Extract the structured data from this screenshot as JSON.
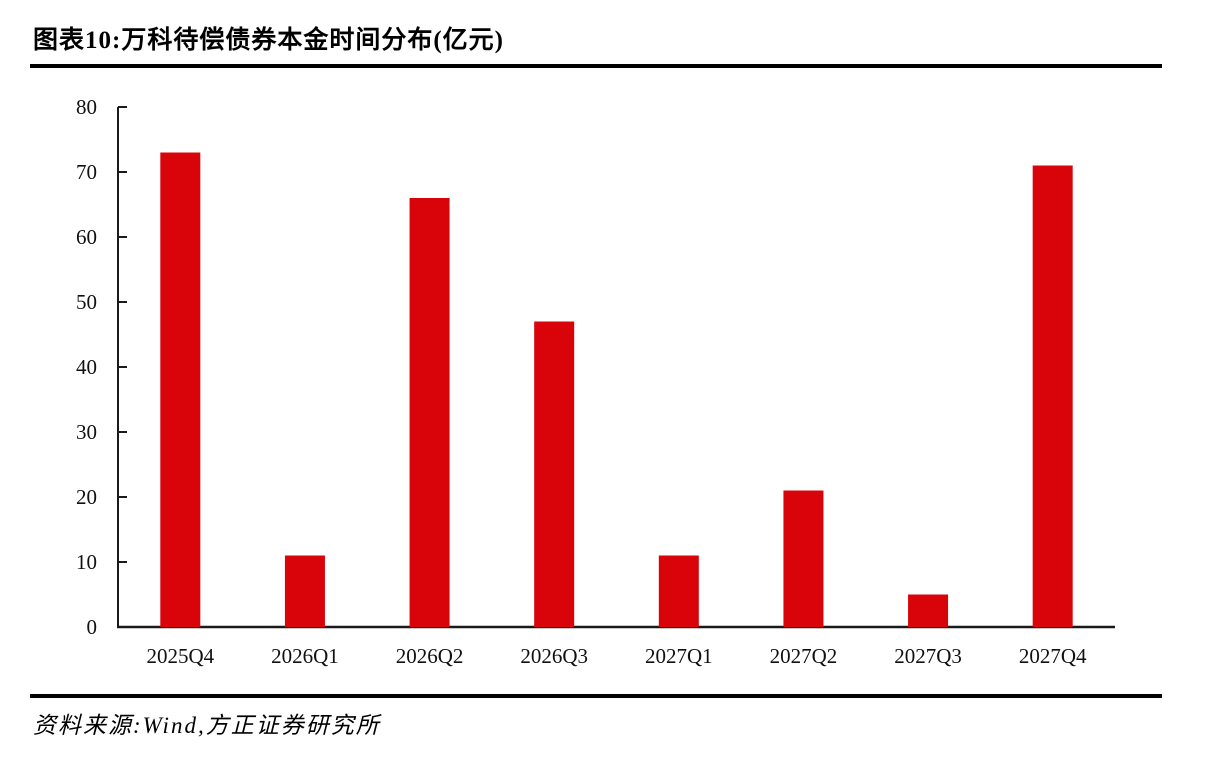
{
  "header": {
    "title": "图表10:万科待偿债券本金时间分布(亿元)"
  },
  "footer": {
    "source": "资料来源:Wind,方正证券研究所"
  },
  "chart_data": {
    "type": "bar",
    "title": "图表10:万科待偿债券本金时间分布(亿元)",
    "categories": [
      "2025Q4",
      "2026Q1",
      "2026Q2",
      "2026Q3",
      "2027Q1",
      "2027Q2",
      "2027Q3",
      "2027Q4"
    ],
    "values": [
      73,
      11,
      66,
      47,
      11,
      21,
      5,
      71
    ],
    "unit": "亿元",
    "xlabel": "",
    "ylabel": "",
    "ylim": [
      0,
      80
    ],
    "yticks": [
      0,
      10,
      20,
      30,
      40,
      50,
      60,
      70,
      80
    ],
    "bar_color": "#D9040A",
    "axis_color": "#1A1A1A",
    "grid": false,
    "legend_position": "none"
  }
}
